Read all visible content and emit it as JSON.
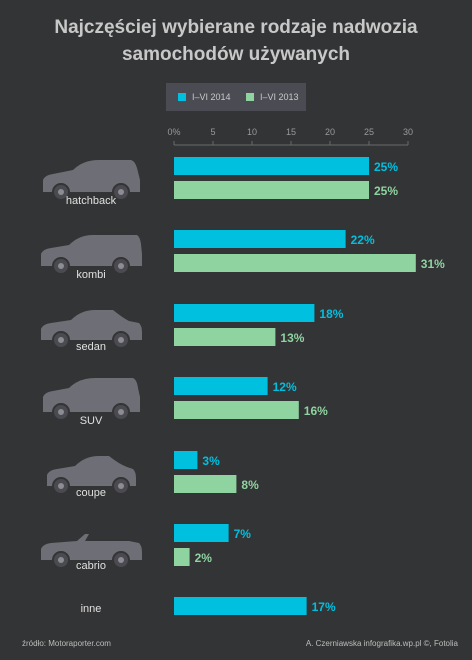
{
  "title_line1": "Najczęściej wybierane rodzaje nadwozia",
  "title_line2": "samochodów używanych",
  "colors": {
    "series1": "#00c0e0",
    "series2": "#8fd3a0",
    "car": "#6e6e76",
    "axis": "#6a6a6a"
  },
  "chart_data": {
    "type": "bar",
    "orientation": "horizontal",
    "categories": [
      "hatchback",
      "kombi",
      "sedan",
      "SUV",
      "coupe",
      "cabrio",
      "inne"
    ],
    "series": [
      {
        "name": "I–VI 2014",
        "values": [
          25,
          22,
          18,
          12,
          3,
          7,
          17
        ]
      },
      {
        "name": "I–VI 2013",
        "values": [
          25,
          31,
          13,
          16,
          8,
          2,
          null
        ]
      }
    ],
    "data_labels": [
      [
        "25%",
        "22%",
        "18%",
        "12%",
        "3%",
        "7%",
        "17%"
      ],
      [
        "25%",
        "31%",
        "13%",
        "16%",
        "8%",
        "2%",
        ""
      ]
    ],
    "xticks": [
      0,
      5,
      10,
      15,
      20,
      25,
      30
    ],
    "xtick_labels": [
      "0%",
      "5",
      "10",
      "15",
      "20",
      "25",
      "30"
    ],
    "xlim": [
      0,
      31
    ],
    "legend_position": "top",
    "grid": false
  },
  "footer": {
    "source": "źródło: Motoraporter.com",
    "credit": "A. Czerniawska infografika.wp.pl ©, Fotolia"
  }
}
